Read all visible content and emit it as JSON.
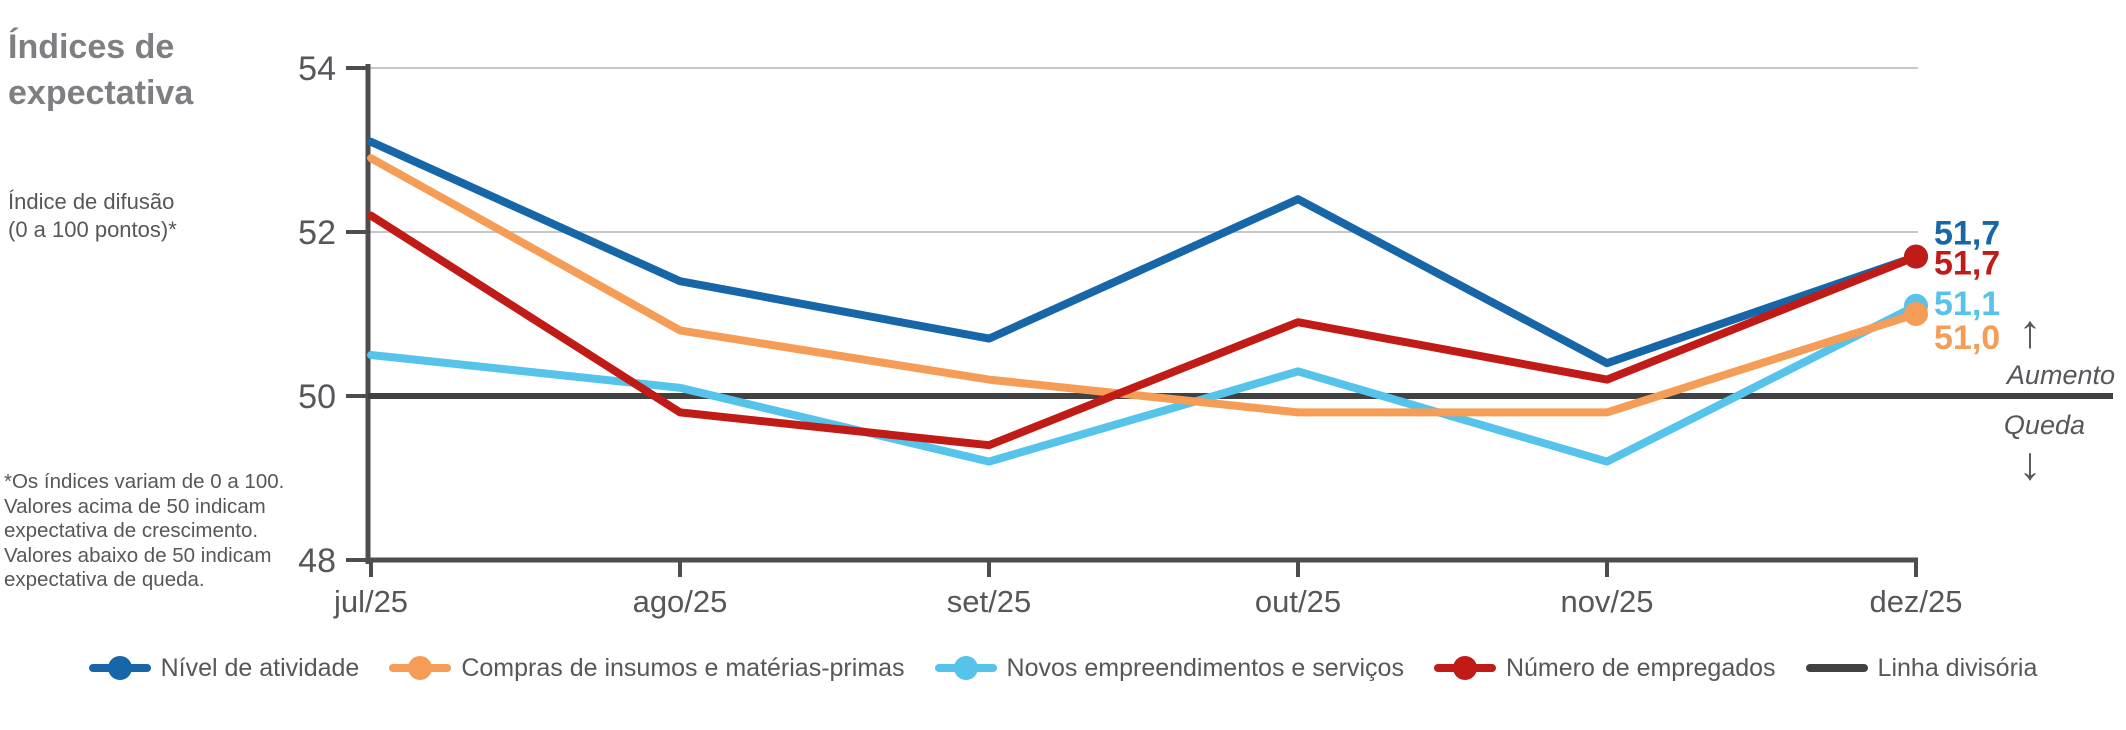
{
  "title": {
    "line1": "Índices de",
    "line2": "expectativa"
  },
  "subtitle": {
    "line1": "Índice de difusão",
    "line2": "(0 a 100 pontos)*"
  },
  "footnote": [
    "*Os índices variam de 0 a 100.",
    "Valores acima de 50 indicam",
    "expectativa de crescimento.",
    "Valores abaixo de 50 indicam",
    "expectativa de queda."
  ],
  "annotations": {
    "increase_label": "Aumento",
    "decrease_label": "Queda",
    "up_arrow": "↑",
    "down_arrow": "↓"
  },
  "colors": {
    "activity_blue": "#1766a8",
    "supplies_orange": "#f59d56",
    "ventures_cyan": "#55c3ea",
    "employees_red": "#c11b17",
    "divider_gray": "#414042",
    "axis_gray": "#4d4d4e",
    "gridline_gray": "#c6c7c8",
    "text_gray": "#55575a",
    "title_gray": "#7d7f82"
  },
  "chart_data": {
    "type": "line",
    "title": "Índices de expectativa",
    "ylabel": "Índice de difusão (0 a 100 pontos)",
    "categories": [
      "jul/25",
      "ago/25",
      "set/25",
      "out/25",
      "nov/25",
      "dez/25"
    ],
    "yticks": [
      54,
      52,
      50,
      48
    ],
    "ylim": [
      48,
      54
    ],
    "grid": "horizontal-at-54-52",
    "legend_position": "bottom",
    "baseline_value": 50,
    "series": [
      {
        "name": "Nível de atividade",
        "color": "#1766a8",
        "values": [
          53.1,
          51.4,
          50.7,
          52.4,
          50.4,
          51.7
        ],
        "end_label": "51,7",
        "end_dot": true
      },
      {
        "name": "Compras de insumos e matérias-primas",
        "color": "#f59d56",
        "values": [
          52.9,
          50.8,
          50.2,
          49.8,
          49.8,
          51.0
        ],
        "end_label": "51,0",
        "end_dot": true
      },
      {
        "name": "Novos empreendimentos e serviços",
        "color": "#55c3ea",
        "values": [
          50.5,
          50.1,
          49.2,
          50.3,
          49.2,
          51.1
        ],
        "end_label": "51,1",
        "end_dot": true
      },
      {
        "name": "Número de empregados",
        "color": "#c11b17",
        "values": [
          52.2,
          49.8,
          49.4,
          50.9,
          50.2,
          51.7
        ],
        "end_label": "51,7",
        "end_dot": true
      },
      {
        "name": "Linha divisória",
        "color": "#414042",
        "is_baseline": true,
        "values": [
          50,
          50,
          50,
          50,
          50,
          50
        ]
      }
    ]
  }
}
